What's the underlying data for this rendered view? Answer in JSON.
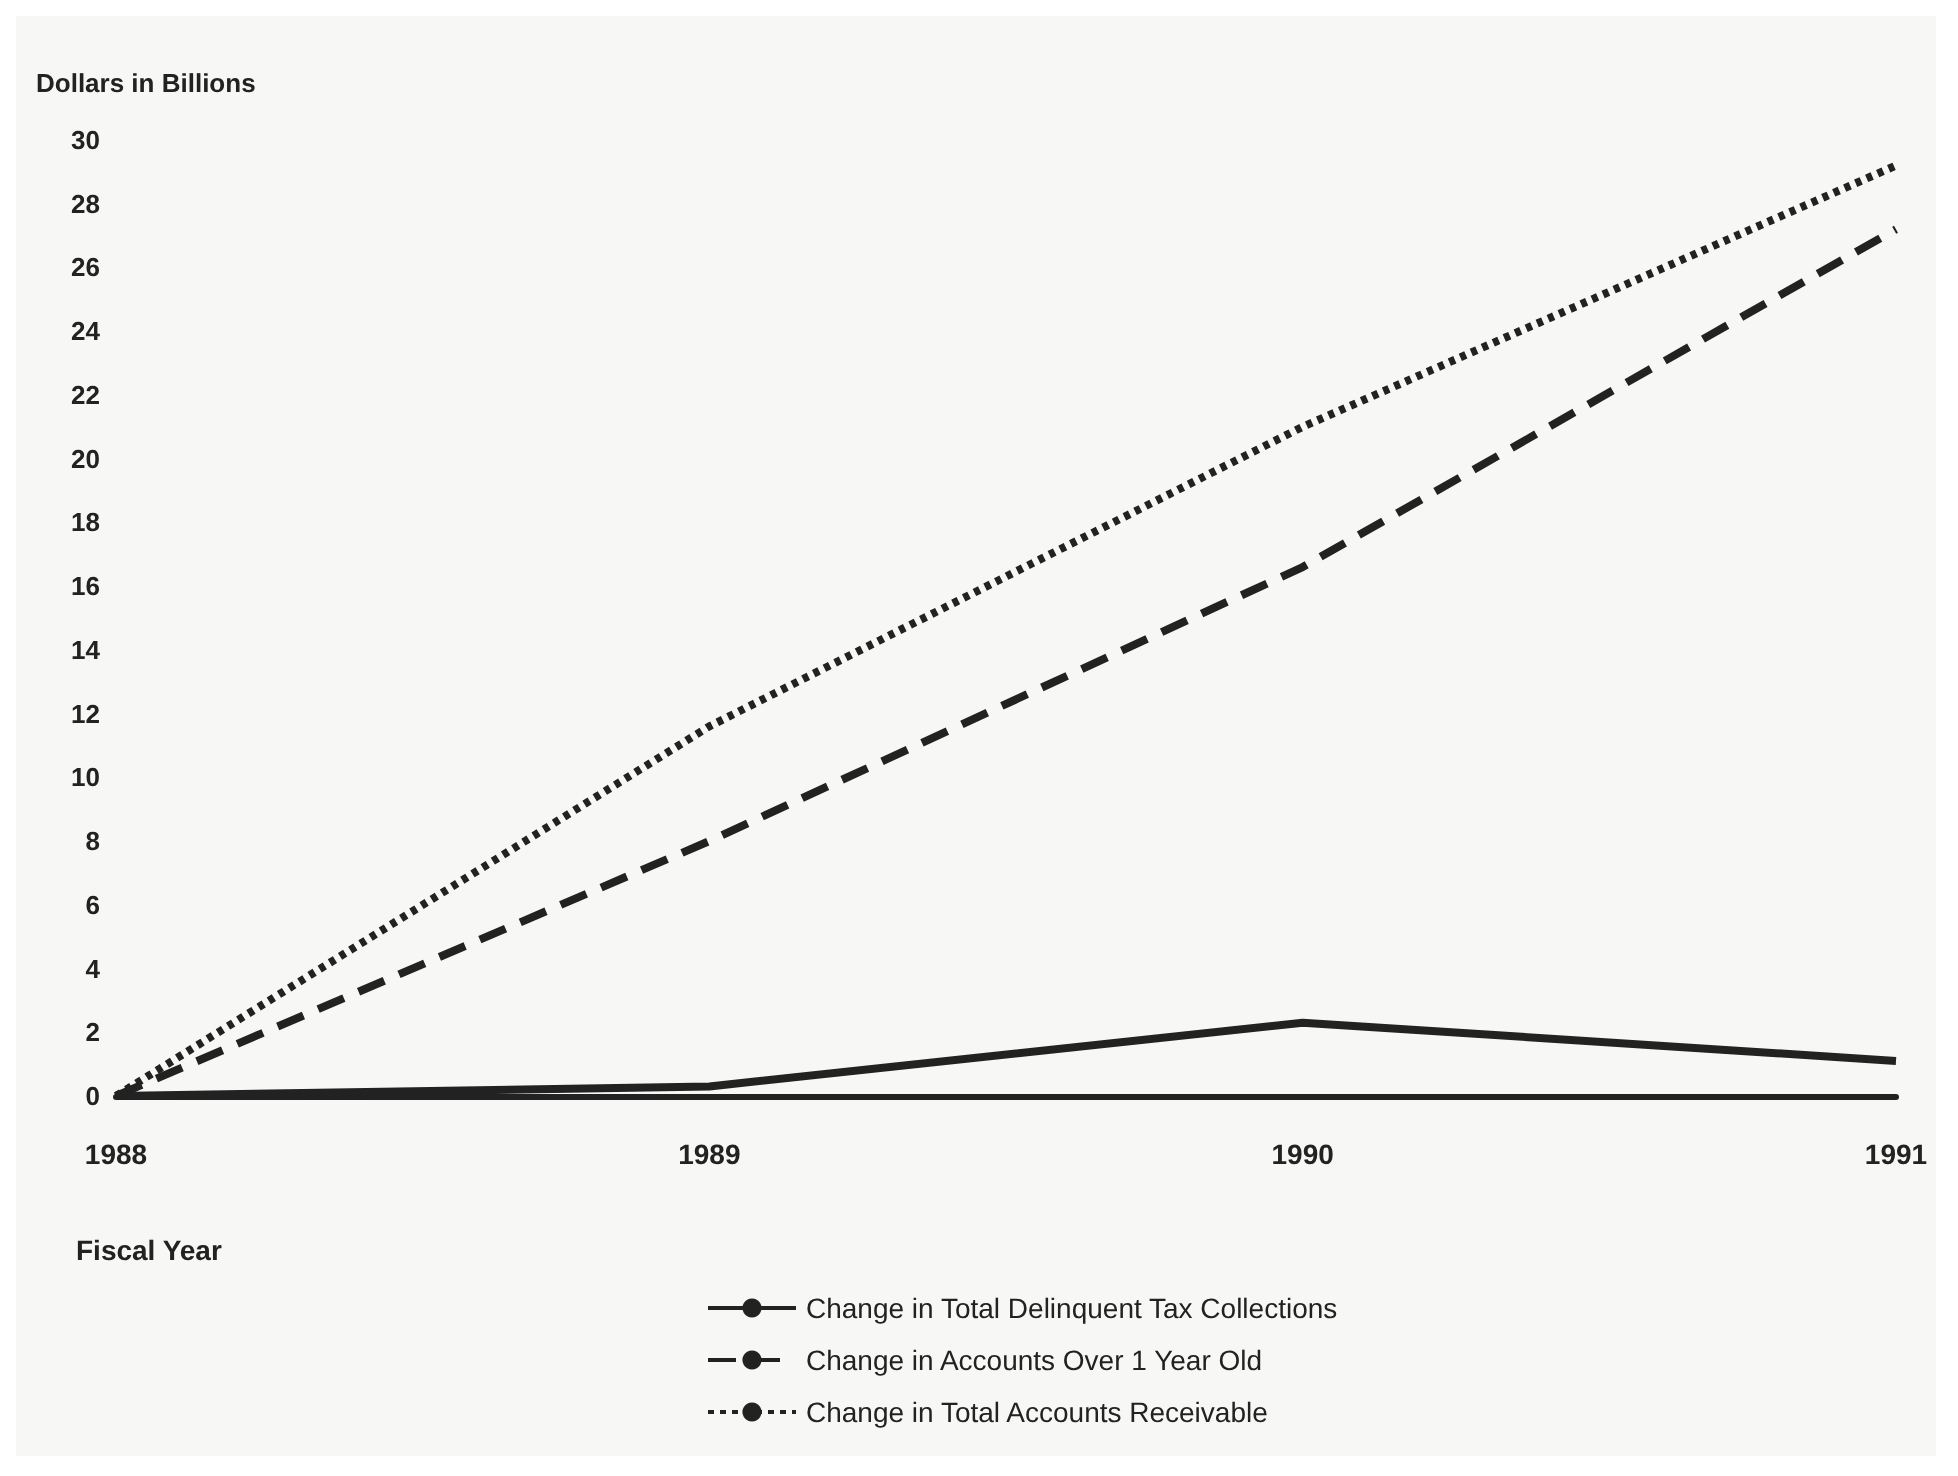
{
  "chart_data": {
    "type": "line",
    "ylabel": "Dollars in Billions",
    "xlabel": "Fiscal Year",
    "categories": [
      "1988",
      "1989",
      "1990",
      "1991"
    ],
    "ylim": [
      0,
      30
    ],
    "yticks": [
      0,
      2,
      4,
      6,
      8,
      10,
      12,
      14,
      16,
      18,
      20,
      22,
      24,
      26,
      28,
      30
    ],
    "grid": false,
    "legend": "bottom",
    "marker": "none",
    "series": [
      {
        "name": "Change in Total Delinquent Tax Collections",
        "color": "#222222",
        "line_style": "solid",
        "values": [
          0,
          0.3,
          2.3,
          1.1
        ]
      },
      {
        "name": "Change in Accounts Over 1 Year Old",
        "color": "#222222",
        "line_style": "dashed",
        "values": [
          0,
          8,
          16.6,
          27.2
        ]
      },
      {
        "name": "Change in Total Accounts Receivable",
        "color": "#222222",
        "line_style": "dotted",
        "values": [
          0,
          11.6,
          21,
          29.2
        ]
      }
    ]
  }
}
